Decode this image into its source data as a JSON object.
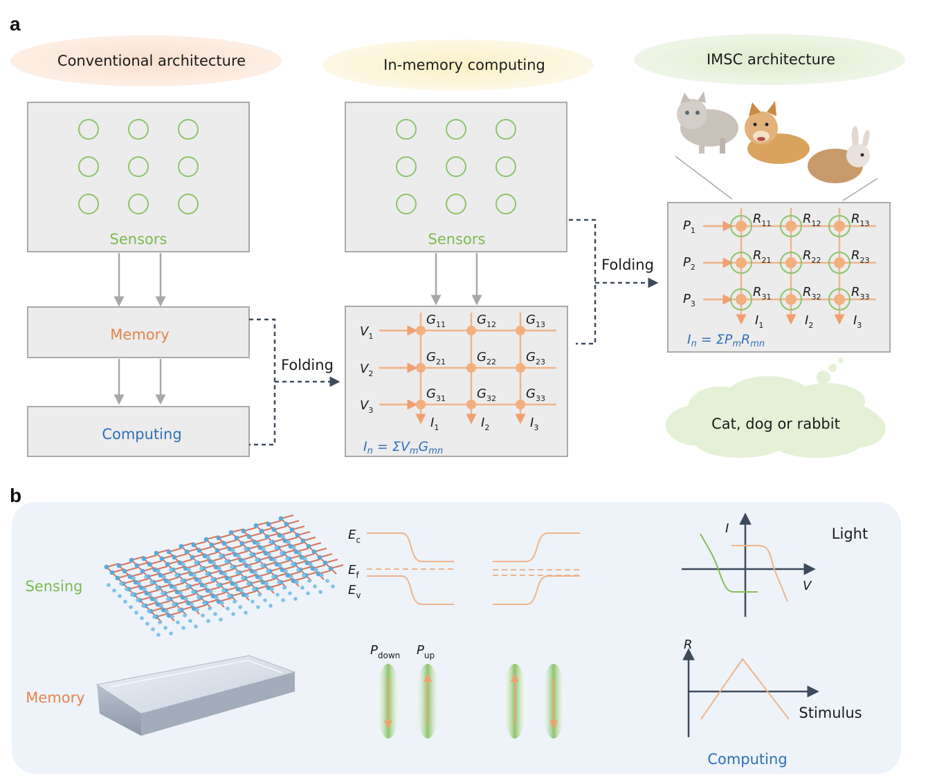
{
  "panel_a": {
    "letter": "a",
    "conventional": {
      "header": "Conventional architecture",
      "sensors": "Sensors",
      "memory": "Memory",
      "computing": "Computing"
    },
    "in_memory": {
      "header": "In-memory computing",
      "sensors": "Sensors",
      "folding": "Folding",
      "rows": [
        {
          "v": "V",
          "v_sub": "1",
          "cells": [
            {
              "g": "G",
              "sub": "11"
            },
            {
              "g": "G",
              "sub": "12"
            },
            {
              "g": "G",
              "sub": "13"
            }
          ]
        },
        {
          "v": "V",
          "v_sub": "2",
          "cells": [
            {
              "g": "G",
              "sub": "21"
            },
            {
              "g": "G",
              "sub": "22"
            },
            {
              "g": "G",
              "sub": "23"
            }
          ]
        },
        {
          "v": "V",
          "v_sub": "3",
          "cells": [
            {
              "g": "G",
              "sub": "31"
            },
            {
              "g": "G",
              "sub": "32"
            },
            {
              "g": "G",
              "sub": "33"
            }
          ]
        }
      ],
      "currents": [
        {
          "i": "I",
          "sub": "1"
        },
        {
          "i": "I",
          "sub": "2"
        },
        {
          "i": "I",
          "sub": "3"
        }
      ],
      "equation": {
        "lhs": "I",
        "lhs_sub": "n",
        "mid": " = ΣV",
        "m_sub": "m",
        "g": "G",
        "g_sub": "mn"
      }
    },
    "imsc": {
      "header": "IMSC architecture",
      "folding": "Folding",
      "rows": [
        {
          "p": "P",
          "p_sub": "1",
          "cells": [
            {
              "r": "R",
              "sub": "11"
            },
            {
              "r": "R",
              "sub": "12"
            },
            {
              "r": "R",
              "sub": "13"
            }
          ]
        },
        {
          "p": "P",
          "p_sub": "2",
          "cells": [
            {
              "r": "R",
              "sub": "21"
            },
            {
              "r": "R",
              "sub": "22"
            },
            {
              "r": "R",
              "sub": "23"
            }
          ]
        },
        {
          "p": "P",
          "p_sub": "3",
          "cells": [
            {
              "r": "R",
              "sub": "31"
            },
            {
              "r": "R",
              "sub": "32"
            },
            {
              "r": "R",
              "sub": "33"
            }
          ]
        }
      ],
      "currents": [
        {
          "i": "I",
          "sub": "1"
        },
        {
          "i": "I",
          "sub": "2"
        },
        {
          "i": "I",
          "sub": "3"
        }
      ],
      "equation": {
        "lhs": "I",
        "lhs_sub": "n",
        "mid": " = ΣP",
        "m_sub": "m",
        "r": "R",
        "r_sub": "mn"
      },
      "animals": [
        "cat-image",
        "dog-image",
        "rabbit-image"
      ],
      "thought": "Cat, dog or rabbit"
    }
  },
  "panel_b": {
    "letter": "b",
    "sensing": "Sensing",
    "memory": "Memory",
    "computing": "Computing",
    "bands": {
      "ec": "E",
      "ec_sub": "c",
      "ef": "E",
      "ef_sub": "f",
      "ev": "E",
      "ev_sub": "v"
    },
    "polarization": {
      "down": "P",
      "down_sub": "down",
      "up": "P",
      "up_sub": "up"
    },
    "iv_plot": {
      "y_label": "I",
      "x_label": "V",
      "legend": "Light"
    },
    "rs_plot": {
      "y_label": "R",
      "x_label": "Stimulus"
    }
  },
  "colors": {
    "sensor_green": "#7cba4f",
    "memory_orange": "#e3834a",
    "computing_blue": "#2f6fb8",
    "grid_orange": "#f0b48a",
    "node_orange": "#f2b07e",
    "box_fill": "#ececec",
    "box_stroke": "#a9a9a9",
    "arrow_gray": "#a8a8a8",
    "dashed_navy": "#3d4a5c",
    "pill_conventional": "#fbe2d3",
    "pill_inmemory": "#fbf3d0",
    "pill_imsc": "#e5f0da",
    "cloud_fill": "#e5f1d6",
    "panel_b_bg": "#edf3f9"
  }
}
